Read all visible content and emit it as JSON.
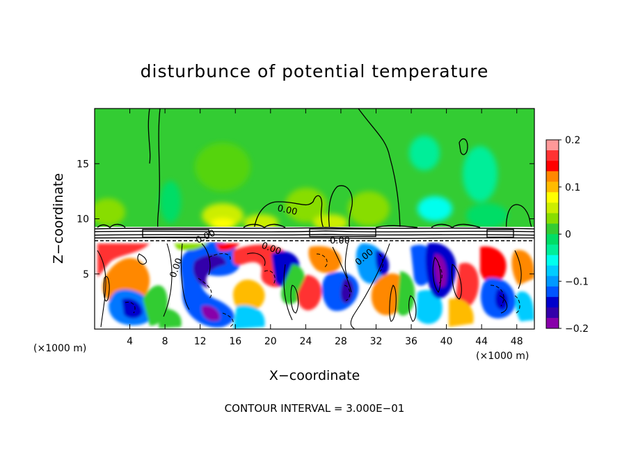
{
  "chart_data": {
    "type": "heatmap",
    "title": "disturbunce of potential temperature",
    "xlabel": "X−coordinate",
    "ylabel": "Z−coordinate",
    "x_unit_left": "(×1000 m)",
    "x_unit_right": "(×1000 m)",
    "xlim": [
      0,
      50
    ],
    "ylim": [
      0,
      20
    ],
    "x_ticks": [
      4,
      8,
      12,
      16,
      20,
      24,
      28,
      32,
      36,
      40,
      44,
      48
    ],
    "x_tick_labels": [
      "4",
      "8",
      "12",
      "16",
      "20",
      "24",
      "28",
      "32",
      "36",
      "40",
      "44",
      "48"
    ],
    "y_ticks": [
      5,
      10,
      15
    ],
    "y_tick_labels": [
      "5",
      "10",
      "15"
    ],
    "colorbar": {
      "range": [
        -0.2,
        0.2
      ],
      "ticks": [
        0.2,
        0.1,
        0,
        -0.1,
        -0.2
      ],
      "tick_labels": [
        "0.2",
        "0.1",
        "0",
        "−0.1",
        "−0.2"
      ],
      "colors": [
        "#ff9999",
        "#ff3333",
        "#ff0000",
        "#ff8800",
        "#ffbb00",
        "#ffff00",
        "#ccee00",
        "#88dd00",
        "#33cc33",
        "#00dd66",
        "#00ee99",
        "#00ffee",
        "#00ccff",
        "#0099ff",
        "#0055ff",
        "#0000cc",
        "#3300aa",
        "#8800aa"
      ]
    },
    "contour_labels": [
      "0.00",
      "0.00",
      "0.00",
      "0.00",
      "0.00",
      "0.00"
    ],
    "footer": "CONTOUR INTERVAL = 3.000E−01"
  }
}
